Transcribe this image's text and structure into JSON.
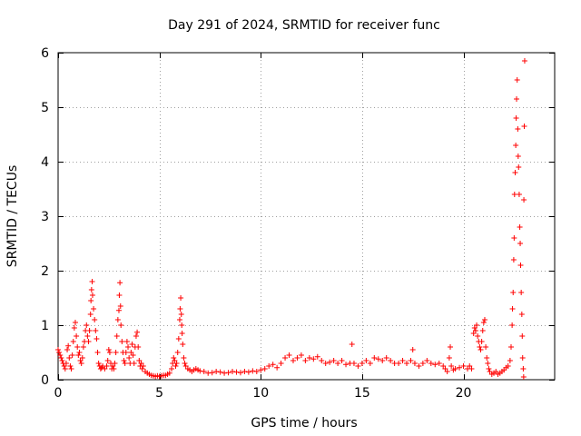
{
  "chart_data": {
    "type": "scatter",
    "title": "Day 291 of 2024, SRMTID for receiver func",
    "xlabel": "GPS time / hours",
    "ylabel": "SRMTID / TECUs",
    "xlim": [
      0,
      24.5
    ],
    "ylim": [
      0,
      6
    ],
    "xticks": [
      0,
      5,
      10,
      15,
      20
    ],
    "xtick_labels": [
      "0",
      "5",
      "10",
      "15",
      "20"
    ],
    "yticks": [
      0,
      1,
      2,
      3,
      4,
      5,
      6
    ],
    "ytick_labels": [
      "0",
      "1",
      "2",
      "3",
      "4",
      "5",
      "6"
    ],
    "grid": true,
    "marker": "+",
    "color": "#ff0000",
    "series": [
      {
        "name": "SRMTID",
        "points": [
          [
            0.0,
            0.55
          ],
          [
            0.05,
            0.5
          ],
          [
            0.1,
            0.45
          ],
          [
            0.15,
            0.4
          ],
          [
            0.2,
            0.35
          ],
          [
            0.25,
            0.3
          ],
          [
            0.3,
            0.25
          ],
          [
            0.35,
            0.2
          ],
          [
            0.4,
            0.3
          ],
          [
            0.45,
            0.55
          ],
          [
            0.5,
            0.62
          ],
          [
            0.55,
            0.4
          ],
          [
            0.6,
            0.25
          ],
          [
            0.65,
            0.2
          ],
          [
            0.7,
            0.45
          ],
          [
            0.75,
            0.7
          ],
          [
            0.8,
            0.95
          ],
          [
            0.85,
            1.05
          ],
          [
            0.9,
            0.8
          ],
          [
            0.95,
            0.6
          ],
          [
            1.0,
            0.45
          ],
          [
            1.05,
            0.5
          ],
          [
            1.1,
            0.35
          ],
          [
            1.15,
            0.3
          ],
          [
            1.2,
            0.4
          ],
          [
            1.25,
            0.6
          ],
          [
            1.3,
            0.7
          ],
          [
            1.35,
            0.9
          ],
          [
            1.4,
            1.0
          ],
          [
            1.45,
            0.8
          ],
          [
            1.5,
            0.7
          ],
          [
            1.55,
            0.9
          ],
          [
            1.6,
            1.2
          ],
          [
            1.62,
            1.45
          ],
          [
            1.65,
            1.65
          ],
          [
            1.68,
            1.8
          ],
          [
            1.7,
            1.55
          ],
          [
            1.75,
            1.3
          ],
          [
            1.8,
            1.1
          ],
          [
            1.85,
            0.9
          ],
          [
            1.9,
            0.75
          ],
          [
            1.95,
            0.5
          ],
          [
            2.0,
            0.3
          ],
          [
            2.05,
            0.25
          ],
          [
            2.1,
            0.2
          ],
          [
            2.15,
            0.22
          ],
          [
            2.2,
            0.25
          ],
          [
            2.3,
            0.2
          ],
          [
            2.4,
            0.25
          ],
          [
            2.45,
            0.35
          ],
          [
            2.5,
            0.55
          ],
          [
            2.55,
            0.5
          ],
          [
            2.6,
            0.3
          ],
          [
            2.65,
            0.2
          ],
          [
            2.7,
            0.25
          ],
          [
            2.75,
            0.2
          ],
          [
            2.8,
            0.3
          ],
          [
            2.85,
            0.5
          ],
          [
            2.9,
            0.8
          ],
          [
            2.95,
            1.1
          ],
          [
            3.0,
            1.27
          ],
          [
            3.02,
            1.55
          ],
          [
            3.05,
            1.78
          ],
          [
            3.08,
            1.35
          ],
          [
            3.1,
            1.0
          ],
          [
            3.15,
            0.7
          ],
          [
            3.2,
            0.5
          ],
          [
            3.25,
            0.35
          ],
          [
            3.3,
            0.3
          ],
          [
            3.35,
            0.5
          ],
          [
            3.4,
            0.7
          ],
          [
            3.45,
            0.6
          ],
          [
            3.5,
            0.4
          ],
          [
            3.55,
            0.3
          ],
          [
            3.6,
            0.5
          ],
          [
            3.65,
            0.65
          ],
          [
            3.7,
            0.45
          ],
          [
            3.75,
            0.3
          ],
          [
            3.8,
            0.6
          ],
          [
            3.85,
            0.8
          ],
          [
            3.9,
            0.87
          ],
          [
            3.95,
            0.6
          ],
          [
            4.0,
            0.35
          ],
          [
            4.05,
            0.25
          ],
          [
            4.1,
            0.3
          ],
          [
            4.15,
            0.2
          ],
          [
            4.2,
            0.25
          ],
          [
            4.3,
            0.15
          ],
          [
            4.4,
            0.12
          ],
          [
            4.5,
            0.1
          ],
          [
            4.6,
            0.08
          ],
          [
            4.7,
            0.07
          ],
          [
            4.8,
            0.06
          ],
          [
            4.9,
            0.07
          ],
          [
            5.0,
            0.06
          ],
          [
            5.1,
            0.07
          ],
          [
            5.2,
            0.08
          ],
          [
            5.3,
            0.08
          ],
          [
            5.4,
            0.1
          ],
          [
            5.5,
            0.12
          ],
          [
            5.6,
            0.2
          ],
          [
            5.65,
            0.3
          ],
          [
            5.7,
            0.4
          ],
          [
            5.75,
            0.35
          ],
          [
            5.8,
            0.25
          ],
          [
            5.85,
            0.3
          ],
          [
            5.9,
            0.5
          ],
          [
            5.95,
            0.75
          ],
          [
            6.0,
            1.1
          ],
          [
            6.02,
            1.3
          ],
          [
            6.05,
            1.5
          ],
          [
            6.08,
            1.2
          ],
          [
            6.1,
            1.0
          ],
          [
            6.12,
            0.85
          ],
          [
            6.15,
            0.65
          ],
          [
            6.2,
            0.4
          ],
          [
            6.25,
            0.3
          ],
          [
            6.3,
            0.25
          ],
          [
            6.4,
            0.2
          ],
          [
            6.5,
            0.18
          ],
          [
            6.6,
            0.15
          ],
          [
            6.7,
            0.18
          ],
          [
            6.8,
            0.2
          ],
          [
            6.9,
            0.18
          ],
          [
            7.0,
            0.16
          ],
          [
            7.2,
            0.15
          ],
          [
            7.4,
            0.12
          ],
          [
            7.6,
            0.13
          ],
          [
            7.8,
            0.15
          ],
          [
            8.0,
            0.14
          ],
          [
            8.2,
            0.12
          ],
          [
            8.4,
            0.13
          ],
          [
            8.6,
            0.15
          ],
          [
            8.8,
            0.14
          ],
          [
            9.0,
            0.13
          ],
          [
            9.2,
            0.15
          ],
          [
            9.4,
            0.14
          ],
          [
            9.6,
            0.16
          ],
          [
            9.8,
            0.15
          ],
          [
            10.0,
            0.18
          ],
          [
            10.2,
            0.2
          ],
          [
            10.4,
            0.25
          ],
          [
            10.6,
            0.28
          ],
          [
            10.8,
            0.22
          ],
          [
            11.0,
            0.3
          ],
          [
            11.2,
            0.4
          ],
          [
            11.4,
            0.45
          ],
          [
            11.6,
            0.35
          ],
          [
            11.8,
            0.4
          ],
          [
            12.0,
            0.45
          ],
          [
            12.2,
            0.35
          ],
          [
            12.4,
            0.4
          ],
          [
            12.6,
            0.38
          ],
          [
            12.8,
            0.42
          ],
          [
            13.0,
            0.35
          ],
          [
            13.2,
            0.3
          ],
          [
            13.4,
            0.32
          ],
          [
            13.6,
            0.35
          ],
          [
            13.8,
            0.3
          ],
          [
            14.0,
            0.35
          ],
          [
            14.2,
            0.28
          ],
          [
            14.4,
            0.3
          ],
          [
            14.5,
            0.65
          ],
          [
            14.6,
            0.3
          ],
          [
            14.8,
            0.25
          ],
          [
            15.0,
            0.3
          ],
          [
            15.2,
            0.35
          ],
          [
            15.4,
            0.3
          ],
          [
            15.6,
            0.4
          ],
          [
            15.8,
            0.38
          ],
          [
            16.0,
            0.35
          ],
          [
            16.2,
            0.4
          ],
          [
            16.4,
            0.35
          ],
          [
            16.6,
            0.3
          ],
          [
            16.8,
            0.3
          ],
          [
            17.0,
            0.35
          ],
          [
            17.2,
            0.3
          ],
          [
            17.4,
            0.35
          ],
          [
            17.5,
            0.55
          ],
          [
            17.6,
            0.3
          ],
          [
            17.8,
            0.25
          ],
          [
            18.0,
            0.3
          ],
          [
            18.2,
            0.35
          ],
          [
            18.4,
            0.3
          ],
          [
            18.6,
            0.28
          ],
          [
            18.8,
            0.3
          ],
          [
            19.0,
            0.25
          ],
          [
            19.1,
            0.2
          ],
          [
            19.2,
            0.15
          ],
          [
            19.3,
            0.4
          ],
          [
            19.35,
            0.6
          ],
          [
            19.4,
            0.25
          ],
          [
            19.5,
            0.18
          ],
          [
            19.6,
            0.2
          ],
          [
            19.8,
            0.22
          ],
          [
            20.0,
            0.25
          ],
          [
            20.2,
            0.2
          ],
          [
            20.3,
            0.25
          ],
          [
            20.4,
            0.2
          ],
          [
            20.5,
            0.85
          ],
          [
            20.55,
            0.95
          ],
          [
            20.6,
            0.9
          ],
          [
            20.65,
            1.0
          ],
          [
            20.7,
            0.8
          ],
          [
            20.75,
            0.7
          ],
          [
            20.8,
            0.6
          ],
          [
            20.85,
            0.55
          ],
          [
            20.9,
            0.7
          ],
          [
            20.95,
            0.9
          ],
          [
            21.0,
            1.05
          ],
          [
            21.05,
            1.1
          ],
          [
            21.1,
            0.6
          ],
          [
            21.15,
            0.4
          ],
          [
            21.2,
            0.3
          ],
          [
            21.25,
            0.2
          ],
          [
            21.3,
            0.15
          ],
          [
            21.4,
            0.1
          ],
          [
            21.5,
            0.12
          ],
          [
            21.6,
            0.15
          ],
          [
            21.7,
            0.1
          ],
          [
            21.8,
            0.12
          ],
          [
            21.9,
            0.15
          ],
          [
            22.0,
            0.18
          ],
          [
            22.1,
            0.22
          ],
          [
            22.2,
            0.25
          ],
          [
            22.3,
            0.35
          ],
          [
            22.35,
            0.6
          ],
          [
            22.4,
            1.0
          ],
          [
            22.42,
            1.3
          ],
          [
            22.45,
            1.6
          ],
          [
            22.48,
            2.2
          ],
          [
            22.5,
            2.6
          ],
          [
            22.52,
            3.4
          ],
          [
            22.55,
            3.8
          ],
          [
            22.58,
            4.3
          ],
          [
            22.6,
            4.8
          ],
          [
            22.62,
            5.15
          ],
          [
            22.65,
            5.5
          ],
          [
            22.68,
            4.6
          ],
          [
            22.7,
            4.1
          ],
          [
            22.72,
            3.9
          ],
          [
            22.75,
            3.4
          ],
          [
            22.78,
            2.8
          ],
          [
            22.8,
            2.5
          ],
          [
            22.82,
            2.1
          ],
          [
            22.85,
            1.6
          ],
          [
            22.88,
            1.2
          ],
          [
            22.9,
            0.8
          ],
          [
            22.92,
            0.4
          ],
          [
            22.95,
            0.2
          ],
          [
            22.97,
            0.05
          ],
          [
            22.98,
            3.3
          ],
          [
            23.0,
            4.65
          ],
          [
            23.02,
            5.85
          ]
        ]
      }
    ]
  }
}
